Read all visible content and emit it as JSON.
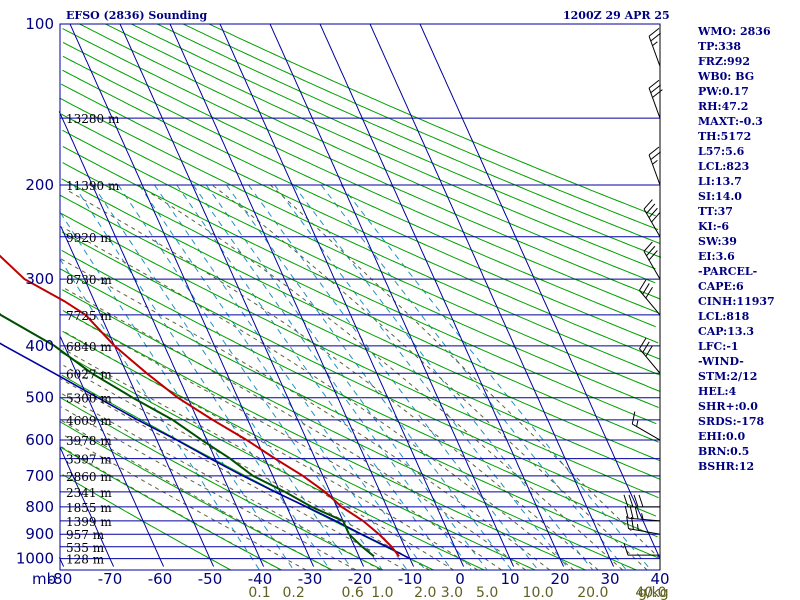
{
  "title": "EFSO (2836) Sounding",
  "datetime": "1200Z 29 APR 25",
  "stats": [
    "WMO: 2836",
    "TP:338",
    "FRZ:992",
    "WB0: BG",
    "PW:0.17",
    "RH:47.2",
    "MAXT:-0.3",
    "TH:5172",
    "L57:5.6",
    "LCL:823",
    "LI:13.7",
    "SI:14.0",
    "TT:37",
    "KI:-6",
    "SW:39",
    "EI:3.6",
    "-PARCEL-",
    "CAPE:6",
    "CINH:11937",
    "LCL:818",
    "CAP:13.3",
    "LFC:-1",
    "-WIND-",
    "STM:2/12",
    "HEL:4",
    "SHR+:0.0",
    "SRDS:-178",
    "EHI:0.0",
    "BRN:0.5",
    "BSHR:12"
  ],
  "colors": {
    "isobar": "#0000a0",
    "isotherm": "#0000a0",
    "dry_adiabat": "#00a000",
    "moist_adiabat": "#606040",
    "mixing_ratio": "#2090c0",
    "temperature": "#c00000",
    "dewpoint": "#005000",
    "parcel": "#0000a0",
    "axis_label": "#000080",
    "mix_label": "#606020"
  },
  "chart_data": {
    "type": "skew-t",
    "title": "EFSO (2836) Sounding",
    "pressure_unit": "mb",
    "mixing_ratio_unit": "g/kg",
    "pressure_levels": [
      100,
      200,
      300,
      400,
      500,
      600,
      700,
      800,
      900,
      1000
    ],
    "temperature_ticks": [
      -80,
      -70,
      -60,
      -50,
      -40,
      -30,
      -20,
      -10,
      0,
      10,
      20,
      30,
      40
    ],
    "temperature_tick_labels": [
      "-80",
      "-70",
      "-60",
      "-50",
      "-40",
      "-30",
      "-20",
      "-10",
      "0",
      "10",
      "20",
      "30",
      "40"
    ],
    "mixing_ratio_ticks": [
      {
        "label": "0.1",
        "value": 0.1
      },
      {
        "label": "0.2",
        "value": 0.2
      },
      {
        "label": "0.6",
        "value": 0.6
      },
      {
        "label": "1.0",
        "value": 1.0
      },
      {
        "label": "2.0",
        "value": 2.0
      },
      {
        "label": "3.0",
        "value": 3.0
      },
      {
        "label": "5.0",
        "value": 5.0
      },
      {
        "label": "10.0",
        "value": 10.0
      },
      {
        "label": "20.0",
        "value": 20.0
      },
      {
        "label": "40.0",
        "value": 40.0
      }
    ],
    "height_labels": [
      {
        "p": 150,
        "label": "13280 m"
      },
      {
        "p": 200,
        "label": "11390 m"
      },
      {
        "p": 250,
        "label": "9920 m"
      },
      {
        "p": 300,
        "label": "8730 m"
      },
      {
        "p": 350,
        "label": "7725 m"
      },
      {
        "p": 400,
        "label": "6840 m"
      },
      {
        "p": 450,
        "label": "6027 m"
      },
      {
        "p": 500,
        "label": "5300 m"
      },
      {
        "p": 550,
        "label": "4609 m"
      },
      {
        "p": 600,
        "label": "3978 m"
      },
      {
        "p": 650,
        "label": "3397 m"
      },
      {
        "p": 700,
        "label": "2860 m"
      },
      {
        "p": 750,
        "label": "2341 m"
      },
      {
        "p": 800,
        "label": "1855 m"
      },
      {
        "p": 850,
        "label": "1399 m"
      },
      {
        "p": 900,
        "label": "957 m"
      },
      {
        "p": 950,
        "label": "535 m"
      },
      {
        "p": 1000,
        "label": "128 m"
      }
    ],
    "temperature_profile": [
      [
        990,
        -12
      ],
      [
        950,
        -12.6
      ],
      [
        900,
        -14
      ],
      [
        850,
        -16
      ],
      [
        800,
        -19
      ],
      [
        750,
        -21
      ],
      [
        700,
        -24
      ],
      [
        650,
        -28
      ],
      [
        600,
        -32
      ],
      [
        550,
        -37
      ],
      [
        500,
        -42
      ],
      [
        450,
        -46
      ],
      [
        400,
        -50
      ],
      [
        350,
        -53
      ],
      [
        330,
        -56
      ],
      [
        300,
        -62
      ],
      [
        270,
        -65
      ],
      [
        250,
        -68
      ],
      [
        200,
        -69
      ],
      [
        150,
        -63
      ],
      [
        140,
        -62
      ]
    ],
    "dewpoint_profile": [
      [
        990,
        -17
      ],
      [
        950,
        -18.5
      ],
      [
        900,
        -20
      ],
      [
        850,
        -20
      ],
      [
        800,
        -25
      ],
      [
        750,
        -29
      ],
      [
        700,
        -34
      ],
      [
        650,
        -37
      ],
      [
        600,
        -41
      ],
      [
        550,
        -45
      ],
      [
        500,
        -51
      ],
      [
        450,
        -57
      ],
      [
        400,
        -62
      ],
      [
        350,
        -70
      ],
      [
        300,
        -74
      ],
      [
        250,
        -85
      ],
      [
        200,
        -94
      ]
    ],
    "parcel_profile": [
      [
        1000,
        -10
      ],
      [
        950,
        -13.5
      ],
      [
        900,
        -17.5
      ],
      [
        850,
        -21.5
      ],
      [
        800,
        -26
      ],
      [
        750,
        -31
      ],
      [
        700,
        -36
      ],
      [
        650,
        -41
      ],
      [
        600,
        -46
      ],
      [
        550,
        -52
      ],
      [
        500,
        -58
      ],
      [
        450,
        -64.5
      ],
      [
        400,
        -72
      ],
      [
        350,
        -80
      ],
      [
        300,
        -89
      ],
      [
        280,
        -93
      ]
    ],
    "wind_barbs": [
      {
        "p": 985,
        "dir": 270,
        "spd": 10
      },
      {
        "p": 900,
        "dir": 280,
        "spd": 25
      },
      {
        "p": 850,
        "dir": 275,
        "spd": 35
      },
      {
        "p": 800,
        "dir": 270,
        "spd": 40
      },
      {
        "p": 600,
        "dir": 300,
        "spd": 15
      },
      {
        "p": 450,
        "dir": 320,
        "spd": 30
      },
      {
        "p": 350,
        "dir": 320,
        "spd": 30
      },
      {
        "p": 300,
        "dir": 330,
        "spd": 30
      },
      {
        "p": 250,
        "dir": 330,
        "spd": 40
      },
      {
        "p": 200,
        "dir": 340,
        "spd": 25
      },
      {
        "p": 150,
        "dir": 340,
        "spd": 30
      },
      {
        "p": 120,
        "dir": 340,
        "spd": 25
      }
    ]
  }
}
